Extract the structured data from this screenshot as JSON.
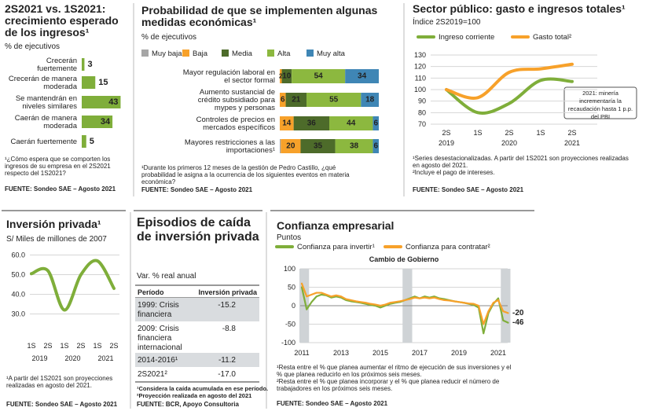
{
  "chart_data": [
    {
      "type": "bar",
      "title": "2S2021 vs. 1S2021: crecimiento esperado de los ingresos¹",
      "subtitle": "% de ejecutivos",
      "categories": [
        "Crecerán fuertemente",
        "Crecerán de manera moderada",
        "Se mantendrán en niveles similares",
        "Caerán de manera moderada",
        "Caerán fuertemente"
      ],
      "values": [
        3,
        15,
        43,
        34,
        5
      ],
      "color": "#7fae3a",
      "footnotes": [
        "¹¿Cómo espera que se comporten los ingresos de su empresa en el 2S2021 respecto del 1S2021?"
      ],
      "source": "FUENTE: Sondeo SAE – Agosto 2021"
    },
    {
      "type": "stacked_bar",
      "title": "Probabilidad de que se implementen algunas medidas económicas¹",
      "subtitle": "% de ejecutivos",
      "categories": [
        "Mayor regulación laboral en el sector formal",
        "Aumento sustancial de crédito subsidiado para mypes y personas",
        "Controles de precios en mercados específicos",
        "Mayores restricciones a las importaciones¹"
      ],
      "series": [
        {
          "name": "Muy baja",
          "color": "#a6a6a6",
          "values": [
            null,
            null,
            null,
            1
          ]
        },
        {
          "name": "Baja",
          "color": "#f7a12a",
          "values": [
            2,
            6,
            14,
            20
          ]
        },
        {
          "name": "Media",
          "color": "#4d6b2a",
          "values": [
            10,
            21,
            36,
            35
          ]
        },
        {
          "name": "Alta",
          "color": "#8cb83f",
          "values": [
            54,
            55,
            44,
            38
          ]
        },
        {
          "name": "Muy alta",
          "color": "#3f86b5",
          "values": [
            34,
            18,
            6,
            6
          ]
        }
      ],
      "footnotes": [
        "¹Durante los primeros 12 meses de la gestión de Pedro Castillo, ¿qué probabilidad le asigna a la ocurrencia de los siguientes eventos en materia económica?"
      ],
      "source": "FUENTE: Sondeo SAE – Agosto 2021"
    },
    {
      "type": "line",
      "title": "Sector público: gasto e ingresos totales¹",
      "subtitle": "Índice 2S2019=100",
      "categories": [
        "2S",
        "1S",
        "2S",
        "1S",
        "2S"
      ],
      "years": [
        "2019",
        null,
        "2020",
        null,
        "2021"
      ],
      "series": [
        {
          "name": "Ingreso corriente",
          "color": "#7fae3a",
          "values": [
            100,
            80,
            88,
            108,
            107
          ]
        },
        {
          "name": "Gasto total²",
          "color": "#f7a12a",
          "values": [
            100,
            93,
            115,
            118,
            122
          ]
        }
      ],
      "ylim": [
        70,
        130
      ],
      "yticks": [
        70,
        80,
        90,
        100,
        110,
        120,
        130
      ],
      "grid": true,
      "annotation": "2021: minería incrementaría la recaudación hasta 1 p.p. del PBI",
      "footnotes": [
        "¹Series desestacionalizadas. A partir del 1S2021 son proyecciones realizadas en agosto del 2021.",
        "²Incluye el pago de intereses."
      ],
      "source": "FUENTE: Sondeo SAE – Agosto 2021"
    },
    {
      "type": "line",
      "title": "Inversión privada¹",
      "subtitle": "S/ Miles de millones de 2007",
      "categories": [
        "1S",
        "2S",
        "1S",
        "2S",
        "1S",
        "2S"
      ],
      "years": [
        "2019",
        null,
        "2020",
        null,
        "2021",
        null
      ],
      "values": [
        50.5,
        52,
        32,
        50,
        57,
        43
      ],
      "color": "#7fae3a",
      "ylim": [
        27,
        63
      ],
      "yticks": [
        {
          "value": 30,
          "label": "30.0"
        },
        {
          "value": 40,
          "label": "40.0"
        },
        {
          "value": 50,
          "label": "50.0"
        },
        {
          "value": 60,
          "label": "60.0"
        }
      ],
      "grid": true,
      "footnotes": [
        "¹A partir del 1S2021 son proyecciones realizadas en agosto del 2021."
      ],
      "source": "FUENTE: Sondeo SAE – Agosto 2021"
    },
    {
      "type": "line",
      "title": "Confianza empresarial",
      "subtitle": "Puntos",
      "categories": [
        "2011",
        null,
        null,
        null,
        null,
        null,
        null,
        null,
        "2013",
        null,
        null,
        null,
        null,
        null,
        null,
        null,
        "2015",
        null,
        null,
        null,
        null,
        null,
        null,
        null,
        "2017",
        null,
        null,
        null,
        null,
        null,
        null,
        null,
        "2019",
        null,
        null,
        null,
        null,
        null,
        null,
        null,
        "2021",
        null,
        null
      ],
      "series": [
        {
          "name": "Confianza para invertir¹",
          "color": "#7fae3a",
          "values": [
            50,
            -10,
            10,
            25,
            30,
            28,
            22,
            25,
            22,
            15,
            12,
            10,
            8,
            5,
            2,
            0,
            -5,
            0,
            5,
            8,
            10,
            15,
            20,
            25,
            20,
            25,
            22,
            25,
            20,
            18,
            15,
            12,
            10,
            8,
            5,
            2,
            -5,
            -75,
            -20,
            5,
            20,
            -40,
            -46
          ]
        },
        {
          "name": "Confianza para contratar²",
          "color": "#f7a12a",
          "values": [
            60,
            25,
            30,
            35,
            35,
            30,
            25,
            28,
            25,
            18,
            15,
            12,
            10,
            8,
            5,
            3,
            0,
            3,
            8,
            10,
            12,
            15,
            18,
            22,
            20,
            22,
            20,
            22,
            18,
            15,
            14,
            12,
            10,
            8,
            6,
            5,
            0,
            -50,
            -15,
            8,
            15,
            -15,
            -20
          ]
        }
      ],
      "ylim": [
        -100,
        100
      ],
      "yticks": [
        -100,
        -50,
        0,
        50,
        100
      ],
      "grid": true,
      "highlight_label": "Cambio de Gobierno",
      "highlights": [
        [
          0,
          1
        ],
        [
          21,
          22
        ],
        [
          41,
          42
        ]
      ],
      "footnotes": [
        "¹Resta entre el % que planea aumentar el ritmo de ejecución de sus inversiones y el % que planea reducirlo en los próximos seis meses.",
        "²Resta entre el % que planea incorporar y el % que planea reducir el número de trabajadores en los próximos seis meses."
      ],
      "source": "FUENTE: Sondeo SAE – Agosto 2021"
    }
  ],
  "table": {
    "title": "Episodios de caída de inversión privada",
    "subtitle": "Var. % real anual",
    "header": [
      "Período",
      "Inversión privada"
    ],
    "rows": [
      [
        "1999: Crisis financiera",
        "-15.2"
      ],
      [
        "2009: Crisis financiera internacional",
        "-8.8"
      ],
      [
        "2014-2016¹",
        "-11.2"
      ],
      [
        "2S2021²",
        "-17.0"
      ]
    ],
    "footnotes": [
      "¹Considera la caída acumulada en ese período.",
      "²Proyección realizada en agosto del 2021"
    ],
    "source": "FUENTE: BCR, Apoyo Consultoria"
  }
}
